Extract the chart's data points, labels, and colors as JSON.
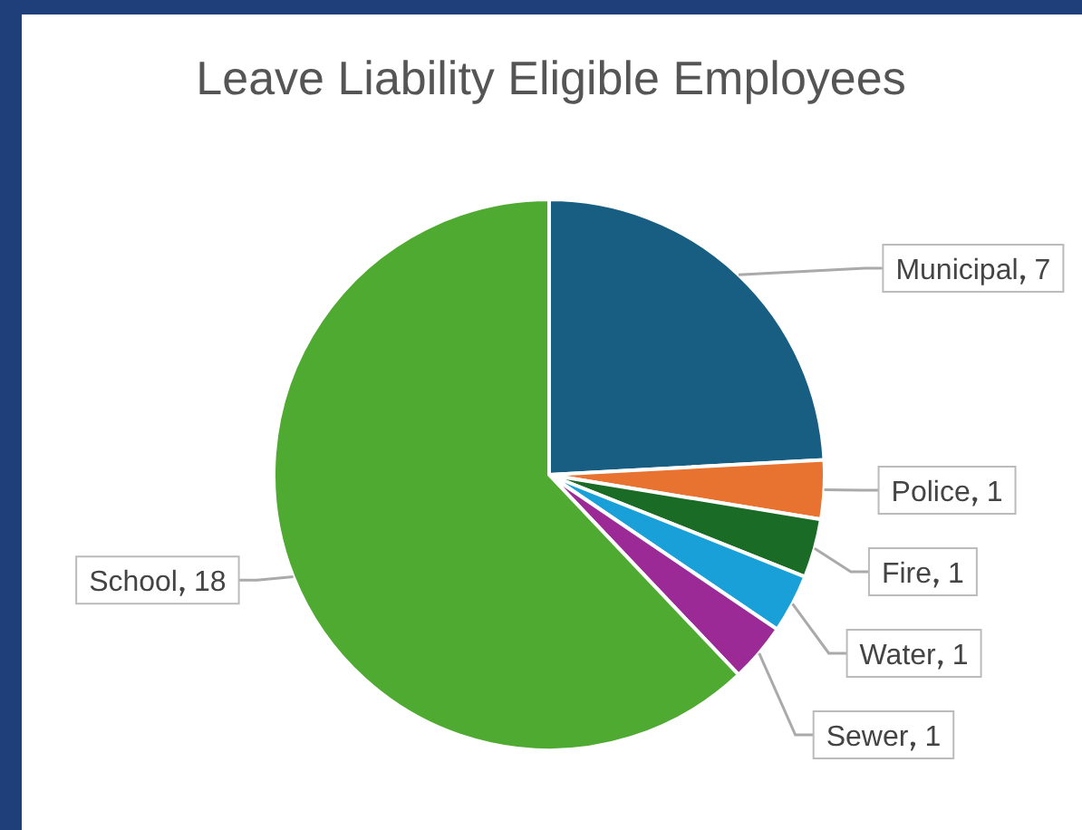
{
  "chart_data": {
    "type": "pie",
    "title": "Leave Liability Eligible Employees",
    "categories": [
      "Municipal",
      "Police",
      "Fire",
      "Water",
      "Sewer",
      "School"
    ],
    "values": [
      7,
      1,
      1,
      1,
      1,
      18
    ],
    "colors": [
      "#175e82",
      "#e8722f",
      "#1a6b26",
      "#1aa0d8",
      "#9b2a97",
      "#4faa31"
    ],
    "data_labels": true,
    "legend": false
  }
}
